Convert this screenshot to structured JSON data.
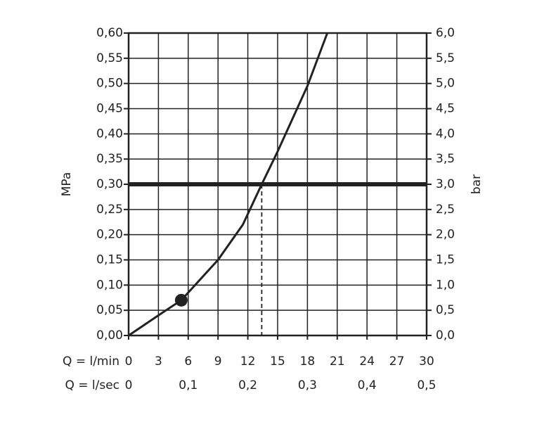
{
  "chart_data": {
    "type": "line",
    "xlabel": "Q = l/min",
    "x2label": "Q = l/sec",
    "ylabel": "MPa",
    "y2label": "bar",
    "xlim": [
      0,
      30
    ],
    "xticks": [
      0,
      3,
      6,
      9,
      12,
      15,
      18,
      21,
      24,
      27,
      30
    ],
    "x2lim": [
      0,
      0.5
    ],
    "x2ticks": [
      0,
      {
        "value": 0.1,
        "label": "0,1"
      },
      {
        "value": 0.2,
        "label": "0,2"
      },
      {
        "value": 0.3,
        "label": "0,3"
      },
      {
        "value": 0.4,
        "label": "0,4"
      },
      {
        "value": 0.5,
        "label": "0,5"
      }
    ],
    "ylim": [
      0,
      0.6
    ],
    "yticks": [
      {
        "value": 0,
        "label": "0,00"
      },
      {
        "value": 0.05,
        "label": "0,05"
      },
      {
        "value": 0.1,
        "label": "0,10"
      },
      {
        "value": 0.15,
        "label": "0,15"
      },
      {
        "value": 0.2,
        "label": "0,20"
      },
      {
        "value": 0.25,
        "label": "0,25"
      },
      {
        "value": 0.3,
        "label": "0,30"
      },
      {
        "value": 0.35,
        "label": "0,35"
      },
      {
        "value": 0.4,
        "label": "0,40"
      },
      {
        "value": 0.45,
        "label": "0,45"
      },
      {
        "value": 0.5,
        "label": "0,50"
      },
      {
        "value": 0.55,
        "label": "0,55"
      },
      {
        "value": 0.6,
        "label": "0,60"
      }
    ],
    "y2lim": [
      0,
      6
    ],
    "y2ticks": [
      {
        "value": 0,
        "label": "0,0"
      },
      {
        "value": 0.5,
        "label": "0,5"
      },
      {
        "value": 1,
        "label": "1,0"
      },
      {
        "value": 1.5,
        "label": "1,5"
      },
      {
        "value": 2,
        "label": "2,0"
      },
      {
        "value": 2.5,
        "label": "2,5"
      },
      {
        "value": 3,
        "label": "3,0"
      },
      {
        "value": 3.5,
        "label": "3,5"
      },
      {
        "value": 4,
        "label": "4,0"
      },
      {
        "value": 4.5,
        "label": "4,5"
      },
      {
        "value": 5,
        "label": "5,0"
      },
      {
        "value": 5.5,
        "label": "5,5"
      },
      {
        "value": 6,
        "label": "6,0"
      }
    ],
    "grid": true,
    "series": [
      {
        "color": "#222222",
        "x": [
          0,
          3,
          5.3,
          9,
          11.5,
          13.4,
          15,
          18,
          20
        ],
        "values": [
          0,
          0.04,
          0.07,
          0.15,
          0.22,
          0.3,
          0.365,
          0.495,
          0.6
        ]
      }
    ],
    "marker": {
      "x": 5.3,
      "y": 0.07
    },
    "reference_y": 0.3,
    "reference_x": 13.4
  }
}
